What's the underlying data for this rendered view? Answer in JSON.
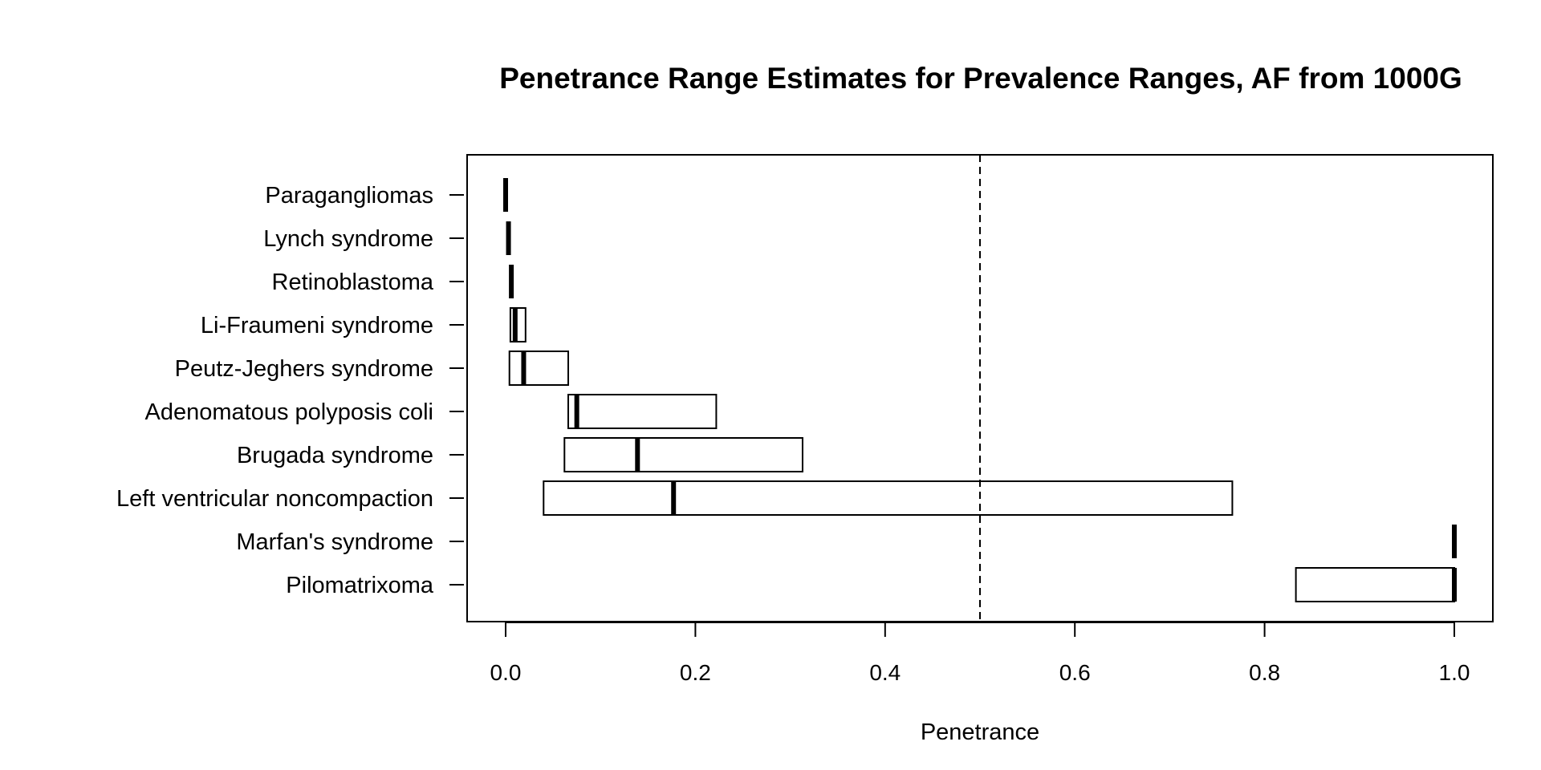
{
  "chart_data": {
    "type": "box",
    "title": "Penetrance Range Estimates for Prevalence Ranges, AF from 1000G",
    "xlabel": "Penetrance",
    "ylabel": "",
    "xlim": [
      -0.04,
      1.04
    ],
    "x_ticks": [
      0.0,
      0.2,
      0.4,
      0.6,
      0.8,
      1.0
    ],
    "x_tick_labels": [
      "0.0",
      "0.2",
      "0.4",
      "0.6",
      "0.8",
      "1.0"
    ],
    "reference_line": {
      "x": 0.5,
      "style": "dashed"
    },
    "grid": false,
    "categories": [
      "Paragangliomas",
      "Lynch syndrome",
      "Retinoblastoma",
      "Li-Fraumeni syndrome",
      "Peutz-Jeghers syndrome",
      "Adenomatous polyposis coli",
      "Brugada syndrome",
      "Left ventricular noncompaction",
      "Marfan's syndrome",
      "Pilomatrixoma"
    ],
    "ranges": [
      {
        "low": 0.0,
        "mid": 0.0,
        "high": 0.0
      },
      {
        "low": 0.003,
        "mid": 0.003,
        "high": 0.003
      },
      {
        "low": 0.006,
        "mid": 0.006,
        "high": 0.006
      },
      {
        "low": 0.005,
        "mid": 0.01,
        "high": 0.021
      },
      {
        "low": 0.004,
        "mid": 0.019,
        "high": 0.066
      },
      {
        "low": 0.066,
        "mid": 0.075,
        "high": 0.222
      },
      {
        "low": 0.062,
        "mid": 0.139,
        "high": 0.313
      },
      {
        "low": 0.04,
        "mid": 0.177,
        "high": 0.766
      },
      {
        "low": 1.0,
        "mid": 1.0,
        "high": 1.0
      },
      {
        "low": 0.833,
        "mid": 1.0,
        "high": 1.0
      }
    ]
  }
}
